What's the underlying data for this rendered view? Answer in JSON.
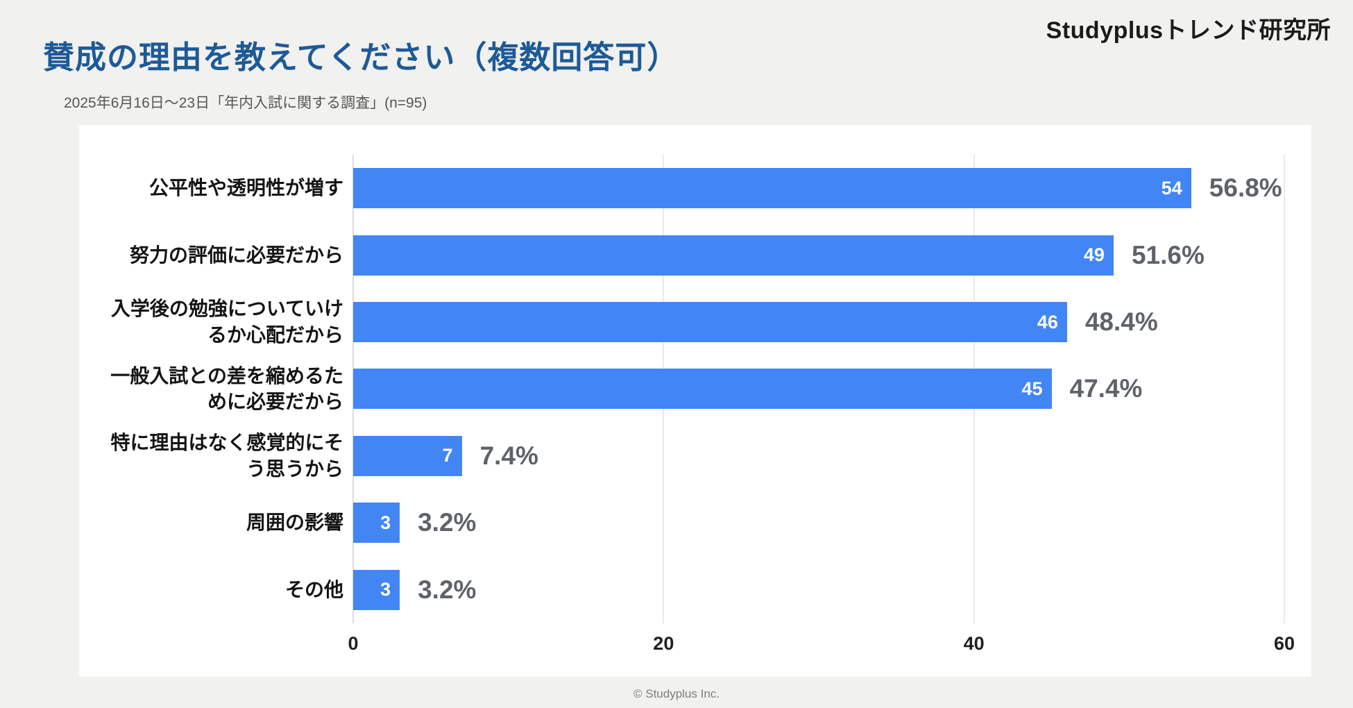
{
  "brand": {
    "logo": "Studyplusトレンド研究所"
  },
  "header": {
    "title": "賛成の理由を教えてください（複数回答可）",
    "subtitle": "2025年6月16日～23日「年内入試に関する調査」(n=95)"
  },
  "footer": {
    "copyright": "© Studyplus Inc."
  },
  "colors": {
    "bar": "#4285f4",
    "title": "#1e5a96",
    "percent_label": "#5f6368",
    "background": "#f1f1ef"
  },
  "chart_data": {
    "type": "bar",
    "orientation": "horizontal",
    "title": "賛成の理由を教えてください（複数回答可）",
    "sample_size": 95,
    "categories": [
      "公平性や透明性が増す",
      "努力の評価に必要だから",
      "入学後の勉強についていけるか心配だから",
      "一般入試との差を縮めるために必要だから",
      "特に理由はなく感覚的にそう思うから",
      "周囲の影響",
      "その他"
    ],
    "values": [
      54,
      49,
      46,
      45,
      7,
      3,
      3
    ],
    "percent_labels": [
      "56.8%",
      "51.6%",
      "48.4%",
      "47.4%",
      "7.4%",
      "3.2%",
      "3.2%"
    ],
    "x_ticks": [
      "0",
      "20",
      "40",
      "60"
    ],
    "xlim": [
      0,
      60
    ],
    "grid": true,
    "legend": false,
    "xlabel": "",
    "ylabel": ""
  }
}
